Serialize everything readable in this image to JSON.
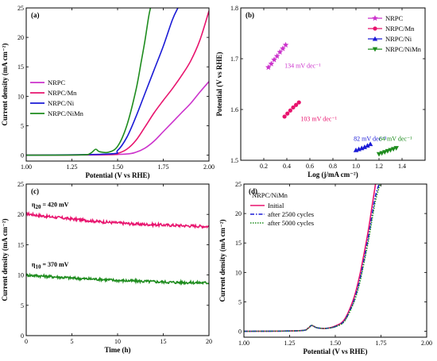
{
  "chart_data": [
    {
      "panel": "(a)",
      "type": "line",
      "xlabel": "Potential (V vs RHE)",
      "ylabel": "Current density (mA cm⁻²)",
      "xlim": [
        1.0,
        2.0
      ],
      "ylim": [
        -1,
        25
      ],
      "xticks": [
        "1.00",
        "1.25",
        "1.50",
        "1.75",
        "2.00"
      ],
      "yticks": [
        "0",
        "5",
        "10",
        "15",
        "20",
        "25"
      ],
      "legend_position": "lower-left",
      "series": [
        {
          "name": "NRPC",
          "color": "#cc33cc",
          "x": [
            1.0,
            1.4,
            1.55,
            1.6,
            1.65,
            1.7,
            1.75,
            1.8,
            1.85,
            1.9,
            1.95,
            2.0
          ],
          "y": [
            0,
            0.05,
            0.2,
            0.5,
            1.2,
            2.4,
            4.0,
            5.6,
            7.2,
            8.8,
            10.7,
            12.5
          ]
        },
        {
          "name": "NRPC/Mn",
          "color": "#e8146e",
          "x": [
            1.0,
            1.45,
            1.5,
            1.55,
            1.6,
            1.65,
            1.7,
            1.75,
            1.8,
            1.85,
            1.9,
            1.95,
            2.0
          ],
          "y": [
            0,
            0.1,
            0.3,
            1.0,
            2.5,
            4.8,
            7.2,
            9.3,
            11.3,
            13.5,
            16.0,
            19.5,
            24.5
          ]
        },
        {
          "name": "NRPC/Ni",
          "color": "#1a1ad6",
          "x": [
            1.0,
            1.45,
            1.5,
            1.55,
            1.6,
            1.65,
            1.7,
            1.75,
            1.8,
            1.83
          ],
          "y": [
            0,
            0.2,
            0.8,
            3.0,
            6.5,
            10.5,
            14.5,
            18.5,
            23.0,
            25
          ]
        },
        {
          "name": "NRPC/NiMn",
          "color": "#1e8c1e",
          "x": [
            1.0,
            1.3,
            1.35,
            1.38,
            1.4,
            1.45,
            1.5,
            1.55,
            1.6,
            1.63,
            1.65,
            1.67,
            1.68
          ],
          "y": [
            0,
            0.05,
            0.3,
            1.0,
            0.6,
            0.5,
            1.5,
            5.0,
            11.0,
            16.0,
            19.5,
            23.5,
            25
          ]
        }
      ]
    },
    {
      "panel": "(b)",
      "type": "scatter",
      "xlabel": "Log (j/mA cm⁻²)",
      "ylabel": "Potential (V vs RHE)",
      "xlim": [
        0.0,
        1.6
      ],
      "ylim": [
        1.5,
        1.8
      ],
      "xticks": [
        "0.2",
        "0.4",
        "0.6",
        "0.8",
        "1.0",
        "1.2",
        "1.4"
      ],
      "yticks": [
        "1.5",
        "1.6",
        "1.7",
        "1.8"
      ],
      "legend_position": "top-right",
      "series": [
        {
          "name": "NRPC",
          "color": "#cc33cc",
          "marker": "star",
          "tafel": "134 mV dec⁻¹",
          "x": [
            0.24,
            0.265,
            0.29,
            0.315,
            0.34,
            0.365,
            0.39
          ],
          "y": [
            1.683,
            1.69,
            1.698,
            1.705,
            1.713,
            1.72,
            1.727
          ]
        },
        {
          "name": "NRPC/Mn",
          "color": "#e8146e",
          "marker": "circle",
          "tafel": "103 mV dec⁻¹",
          "x": [
            0.38,
            0.405,
            0.43,
            0.455,
            0.48,
            0.505
          ],
          "y": [
            1.586,
            1.592,
            1.598,
            1.604,
            1.609,
            1.614
          ]
        },
        {
          "name": "NRPC/Ni",
          "color": "#1a1ad6",
          "marker": "triangle-up",
          "tafel": "82 mV dec⁻¹",
          "x": [
            1.0,
            1.025,
            1.05,
            1.075,
            1.1,
            1.125
          ],
          "y": [
            1.52,
            1.522,
            1.524,
            1.526,
            1.529,
            1.532
          ]
        },
        {
          "name": "NRPC/NiMn",
          "color": "#1e8c1e",
          "marker": "triangle-down",
          "tafel": "64 mV dec⁻¹",
          "x": [
            1.2,
            1.225,
            1.25,
            1.275,
            1.3,
            1.325,
            1.35
          ],
          "y": [
            1.512,
            1.514,
            1.516,
            1.518,
            1.52,
            1.522,
            1.524
          ]
        }
      ]
    },
    {
      "panel": "(c)",
      "type": "line",
      "xlabel": "Time (h)",
      "ylabel": "Current density (mA cm⁻²)",
      "xlim": [
        0,
        20
      ],
      "ylim": [
        0,
        25
      ],
      "xticks": [
        "0",
        "5",
        "10",
        "15",
        "20"
      ],
      "yticks": [
        "0",
        "5",
        "10",
        "15",
        "20",
        "25"
      ],
      "annotations": [
        {
          "text_main": "η",
          "text_sub": "20",
          "text_rest": " = 420 mV",
          "x": 0.6,
          "y": 21.3
        },
        {
          "text_main": "η",
          "text_sub": "10",
          "text_rest": " = 370 mV",
          "x": 0.6,
          "y": 11.4
        }
      ],
      "series": [
        {
          "name": "",
          "color": "#e8146e",
          "x": [
            0,
            2,
            4,
            6,
            8,
            10,
            12,
            14,
            16,
            18,
            20
          ],
          "y": [
            20.1,
            19.7,
            19.4,
            19.1,
            18.8,
            18.6,
            18.4,
            18.3,
            18.2,
            18.1,
            18.0
          ]
        },
        {
          "name": "",
          "color": "#1e8c1e",
          "x": [
            0,
            2,
            4,
            6,
            8,
            10,
            12,
            14,
            16,
            18,
            20
          ],
          "y": [
            10.0,
            9.8,
            9.6,
            9.4,
            9.3,
            9.1,
            9.0,
            8.9,
            8.8,
            8.75,
            8.7
          ]
        }
      ]
    },
    {
      "panel": "(d)",
      "type": "line",
      "xlabel": "Potential (V vs RHE)",
      "ylabel": "Current density (mA cm⁻²)",
      "xlim": [
        1.0,
        2.0
      ],
      "ylim": [
        -1,
        25
      ],
      "xticks": [
        "1.00",
        "1.25",
        "1.50",
        "1.75",
        "2.00"
      ],
      "yticks": [
        "0",
        "5",
        "10",
        "15",
        "20",
        "25"
      ],
      "legend_title": "NRPC/NiMn",
      "legend_position": "top-left",
      "series": [
        {
          "name": "Initial",
          "color": "#e8146e",
          "dash": "solid",
          "x": [
            1.0,
            1.3,
            1.35,
            1.37,
            1.4,
            1.45,
            1.5,
            1.55,
            1.6,
            1.63,
            1.65,
            1.68,
            1.7,
            1.72
          ],
          "y": [
            0,
            0.1,
            0.5,
            1.0,
            0.6,
            0.5,
            0.9,
            2.0,
            5.5,
            9.0,
            12.0,
            17.0,
            21.0,
            25
          ]
        },
        {
          "name": "after 2500 cycles",
          "color": "#1a1ad6",
          "dash": "dashdot",
          "x": [
            1.0,
            1.3,
            1.35,
            1.37,
            1.4,
            1.45,
            1.5,
            1.55,
            1.6,
            1.63,
            1.65,
            1.68,
            1.7,
            1.72,
            1.74
          ],
          "y": [
            0,
            0.1,
            0.5,
            1.0,
            0.6,
            0.5,
            0.8,
            1.8,
            5.0,
            8.2,
            11.0,
            15.8,
            19.5,
            23.0,
            25
          ]
        },
        {
          "name": "after 5000 cycles",
          "color": "#1e8c1e",
          "dash": "dotted",
          "x": [
            1.0,
            1.3,
            1.35,
            1.37,
            1.4,
            1.45,
            1.5,
            1.55,
            1.6,
            1.63,
            1.65,
            1.68,
            1.7,
            1.72,
            1.745
          ],
          "y": [
            0,
            0.1,
            0.5,
            1.0,
            0.6,
            0.5,
            0.8,
            1.7,
            4.8,
            7.8,
            10.6,
            15.2,
            18.8,
            22.2,
            25
          ]
        }
      ]
    }
  ]
}
